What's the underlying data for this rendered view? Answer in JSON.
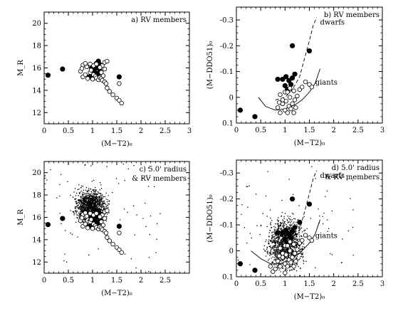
{
  "chart_data": [
    {
      "id": "a",
      "type": "scatter",
      "title": "a) RV members",
      "xlabel": "(M−T2)₀",
      "ylabel": "M_R",
      "xlim": [
        0,
        3
      ],
      "ylim": [
        21,
        11
      ],
      "xticks": [
        0,
        0.5,
        1,
        1.5,
        2,
        2.5,
        3
      ],
      "yticks": [
        12,
        14,
        16,
        18,
        20
      ],
      "show_xtick_labels": true,
      "show_ytick_labels": true,
      "series": [
        {
          "marker": "filled",
          "points": [
            [
              0.08,
              15.35
            ],
            [
              0.38,
              15.9
            ],
            [
              1.55,
              15.2
            ],
            [
              0.93,
              15.2
            ],
            [
              1.0,
              15.25
            ],
            [
              1.05,
              15.15
            ],
            [
              1.1,
              15.3
            ],
            [
              0.98,
              15.5
            ],
            [
              1.05,
              15.6
            ],
            [
              1.12,
              15.5
            ],
            [
              1.15,
              15.75
            ],
            [
              1.05,
              15.95
            ],
            [
              1.1,
              16.05
            ],
            [
              1.15,
              16.3
            ],
            [
              1.08,
              16.4
            ],
            [
              1.12,
              16.6
            ],
            [
              0.98,
              16.0
            ]
          ]
        },
        {
          "marker": "open",
          "points": [
            [
              0.75,
              15.7
            ],
            [
              0.8,
              15.2
            ],
            [
              0.85,
              15.4
            ],
            [
              0.9,
              15.05
            ],
            [
              0.95,
              15.6
            ],
            [
              0.97,
              15.8
            ],
            [
              1.0,
              15.0
            ],
            [
              1.02,
              15.4
            ],
            [
              1.06,
              15.25
            ],
            [
              1.08,
              15.1
            ],
            [
              1.12,
              14.95
            ],
            [
              1.15,
              15.15
            ],
            [
              1.18,
              15.05
            ],
            [
              1.2,
              14.9
            ],
            [
              1.22,
              15.3
            ],
            [
              1.25,
              14.75
            ],
            [
              1.28,
              14.6
            ],
            [
              1.3,
              14.2
            ],
            [
              1.35,
              13.9
            ],
            [
              1.42,
              13.6
            ],
            [
              1.5,
              13.3
            ],
            [
              1.55,
              13.1
            ],
            [
              1.6,
              12.85
            ],
            [
              1.55,
              14.6
            ],
            [
              0.8,
              16.25
            ],
            [
              0.88,
              16.1
            ],
            [
              0.95,
              16.35
            ],
            [
              1.02,
              16.2
            ],
            [
              1.08,
              16.35
            ],
            [
              1.2,
              16.2
            ],
            [
              1.25,
              16.5
            ],
            [
              1.15,
              16.05
            ],
            [
              0.85,
              16.4
            ],
            [
              1.25,
              15.9
            ],
            [
              1.3,
              16.6
            ],
            [
              0.78,
              15.95
            ],
            [
              1.18,
              15.6
            ]
          ]
        }
      ]
    },
    {
      "id": "b",
      "type": "scatter",
      "title": "b) RV members",
      "xlabel": "(M−T2)₀",
      "ylabel": "(M−DDO51)₀",
      "xlim": [
        0,
        3
      ],
      "ylim": [
        -0.35,
        0.1
      ],
      "xticks": [
        0,
        0.5,
        1,
        1.5,
        2,
        2.5,
        3
      ],
      "yticks": [
        0.1,
        0,
        -0.1,
        -0.2,
        -0.3
      ],
      "ytick_labels": [
        "0.1",
        "0",
        "-0.1",
        "-0.2",
        "-0.3"
      ],
      "show_xtick_labels": true,
      "show_ytick_labels": true,
      "annotations": [
        {
          "text": "giants",
          "x": 1.62,
          "y": -0.058
        },
        {
          "text": "dwarfs",
          "x": 1.72,
          "y": -0.29
        }
      ],
      "curves": [
        {
          "name": "giants",
          "style": "solid",
          "points": [
            [
              0.45,
              0.0
            ],
            [
              0.6,
              0.035
            ],
            [
              0.8,
              0.05
            ],
            [
              1.0,
              0.045
            ],
            [
              1.2,
              0.03
            ],
            [
              1.35,
              0.01
            ],
            [
              1.5,
              -0.02
            ],
            [
              1.62,
              -0.055
            ],
            [
              1.72,
              -0.11
            ]
          ]
        },
        {
          "name": "dwarfs",
          "style": "dashed",
          "points": [
            [
              0.8,
              0.01
            ],
            [
              1.0,
              0.0
            ],
            [
              1.15,
              -0.03
            ],
            [
              1.3,
              -0.08
            ],
            [
              1.4,
              -0.15
            ],
            [
              1.5,
              -0.22
            ],
            [
              1.58,
              -0.28
            ],
            [
              1.65,
              -0.31
            ]
          ]
        }
      ],
      "series": [
        {
          "marker": "filled",
          "points": [
            [
              0.08,
              0.05
            ],
            [
              0.38,
              0.075
            ],
            [
              0.95,
              -0.07
            ],
            [
              1.0,
              -0.045
            ],
            [
              1.05,
              -0.03
            ],
            [
              1.08,
              -0.065
            ],
            [
              1.12,
              -0.05
            ],
            [
              1.15,
              -0.075
            ],
            [
              0.85,
              -0.07
            ],
            [
              1.2,
              -0.09
            ],
            [
              1.5,
              -0.18
            ],
            [
              1.15,
              -0.2
            ],
            [
              1.02,
              -0.08
            ]
          ]
        },
        {
          "marker": "open",
          "points": [
            [
              0.85,
              0.04
            ],
            [
              0.9,
              0.06
            ],
            [
              0.95,
              0.025
            ],
            [
              1.0,
              0.05
            ],
            [
              1.02,
              0.015
            ],
            [
              1.05,
              0.06
            ],
            [
              1.08,
              0.035
            ],
            [
              1.1,
              0.0
            ],
            [
              1.12,
              0.045
            ],
            [
              1.15,
              0.025
            ],
            [
              1.18,
              0.06
            ],
            [
              1.2,
              0.01
            ],
            [
              1.22,
              0.04
            ],
            [
              0.9,
              -0.01
            ],
            [
              0.95,
              0.01
            ],
            [
              1.0,
              -0.02
            ],
            [
              1.25,
              -0.005
            ],
            [
              1.3,
              -0.03
            ],
            [
              1.35,
              -0.04
            ],
            [
              1.42,
              -0.06
            ],
            [
              1.5,
              -0.05
            ],
            [
              1.55,
              -0.04
            ],
            [
              1.05,
              -0.02
            ],
            [
              1.1,
              -0.035
            ],
            [
              1.18,
              -0.025
            ],
            [
              0.88,
              0.02
            ]
          ]
        }
      ]
    },
    {
      "id": "c",
      "type": "scatter",
      "title": "c) 5.0' radius",
      "title2": "& RV members",
      "xlabel": "(M−T2)₀",
      "ylabel": "M_R",
      "xlim": [
        0,
        3
      ],
      "ylim": [
        21,
        11
      ],
      "xticks": [
        0,
        0.5,
        1,
        1.5,
        2,
        2.5,
        3
      ],
      "xtick_labels": [
        "0",
        "0.5",
        "1",
        "1.5",
        "2",
        "2.5",
        ""
      ],
      "yticks": [
        12,
        14,
        16,
        18,
        20
      ],
      "show_xtick_labels": true,
      "show_ytick_labels": true,
      "field": {
        "n": 1300,
        "x_range": [
          0.55,
          1.35
        ],
        "y_range": [
          15.0,
          19.0
        ]
      },
      "series": [
        {
          "marker": "filled",
          "points": [
            [
              0.08,
              15.35
            ],
            [
              0.38,
              15.9
            ],
            [
              1.55,
              15.2
            ],
            [
              0.93,
              15.2
            ],
            [
              1.0,
              15.25
            ],
            [
              1.05,
              15.15
            ],
            [
              1.1,
              15.3
            ],
            [
              0.98,
              15.5
            ],
            [
              1.05,
              15.6
            ],
            [
              1.12,
              15.5
            ],
            [
              1.15,
              15.75
            ],
            [
              1.05,
              15.95
            ],
            [
              1.1,
              16.05
            ],
            [
              1.15,
              16.3
            ],
            [
              1.08,
              16.4
            ],
            [
              1.12,
              16.6
            ],
            [
              0.98,
              16.0
            ]
          ]
        },
        {
          "marker": "open",
          "points": [
            [
              0.75,
              15.7
            ],
            [
              0.8,
              15.2
            ],
            [
              0.85,
              15.4
            ],
            [
              0.9,
              15.05
            ],
            [
              0.95,
              15.6
            ],
            [
              0.97,
              15.8
            ],
            [
              1.0,
              15.0
            ],
            [
              1.02,
              15.4
            ],
            [
              1.06,
              15.25
            ],
            [
              1.08,
              15.1
            ],
            [
              1.12,
              14.95
            ],
            [
              1.15,
              15.15
            ],
            [
              1.18,
              15.05
            ],
            [
              1.2,
              14.9
            ],
            [
              1.22,
              15.3
            ],
            [
              1.25,
              14.75
            ],
            [
              1.28,
              14.6
            ],
            [
              1.3,
              14.2
            ],
            [
              1.35,
              13.9
            ],
            [
              1.42,
              13.6
            ],
            [
              1.5,
              13.3
            ],
            [
              1.55,
              13.1
            ],
            [
              1.6,
              12.85
            ],
            [
              1.55,
              14.6
            ],
            [
              0.8,
              16.25
            ],
            [
              0.88,
              16.1
            ],
            [
              0.95,
              16.35
            ],
            [
              1.02,
              16.2
            ],
            [
              1.08,
              16.35
            ],
            [
              1.2,
              16.2
            ],
            [
              1.25,
              16.5
            ],
            [
              1.15,
              16.05
            ],
            [
              0.85,
              16.4
            ],
            [
              1.25,
              15.9
            ],
            [
              1.3,
              16.6
            ],
            [
              0.78,
              15.95
            ],
            [
              1.18,
              15.6
            ]
          ]
        }
      ]
    },
    {
      "id": "d",
      "type": "scatter",
      "title": "d) 5.0' radius",
      "title2": "& RV members",
      "xlabel": "(M−T2)₀",
      "ylabel": "(M−DDO51)₀",
      "xlim": [
        0,
        3
      ],
      "ylim": [
        -0.35,
        0.1
      ],
      "xticks": [
        0,
        0.5,
        1,
        1.5,
        2,
        2.5,
        3
      ],
      "yticks": [
        0.1,
        0,
        -0.1,
        -0.2,
        -0.3
      ],
      "ytick_labels": [
        "0.1",
        "0",
        "-0.1",
        "-0.2",
        "-0.3"
      ],
      "show_xtick_labels": true,
      "show_ytick_labels": true,
      "annotations": [
        {
          "text": "giants",
          "x": 1.62,
          "y": -0.058
        },
        {
          "text": "dwarfs",
          "x": 1.72,
          "y": -0.29
        }
      ],
      "curves": [
        {
          "name": "giants",
          "style": "solid",
          "points": [
            [
              0.3,
              0.0
            ],
            [
              0.5,
              0.03
            ],
            [
              0.7,
              0.05
            ],
            [
              0.9,
              0.05
            ],
            [
              1.1,
              0.035
            ],
            [
              1.3,
              0.01
            ],
            [
              1.5,
              -0.03
            ],
            [
              1.62,
              -0.065
            ],
            [
              1.72,
              -0.12
            ]
          ]
        },
        {
          "name": "dwarfs",
          "style": "dashed",
          "points": [
            [
              0.8,
              0.01
            ],
            [
              1.0,
              0.0
            ],
            [
              1.15,
              -0.03
            ],
            [
              1.3,
              -0.08
            ],
            [
              1.4,
              -0.15
            ],
            [
              1.5,
              -0.22
            ],
            [
              1.58,
              -0.28
            ],
            [
              1.65,
              -0.31
            ]
          ]
        }
      ],
      "field": {
        "n": 1300,
        "x_range": [
          0.55,
          1.45
        ],
        "y_range": [
          -0.16,
          0.1
        ]
      },
      "series": [
        {
          "marker": "filled",
          "points": [
            [
              0.08,
              0.05
            ],
            [
              0.38,
              0.075
            ],
            [
              0.95,
              -0.07
            ],
            [
              1.0,
              -0.045
            ],
            [
              1.05,
              -0.03
            ],
            [
              1.08,
              -0.065
            ],
            [
              1.12,
              -0.05
            ],
            [
              1.15,
              -0.075
            ],
            [
              0.85,
              -0.07
            ],
            [
              1.2,
              -0.09
            ],
            [
              1.5,
              -0.18
            ],
            [
              1.15,
              -0.2
            ],
            [
              1.02,
              -0.08
            ],
            [
              1.3,
              -0.11
            ]
          ]
        },
        {
          "marker": "open",
          "points": [
            [
              0.85,
              0.04
            ],
            [
              0.9,
              0.06
            ],
            [
              0.95,
              0.025
            ],
            [
              1.0,
              0.05
            ],
            [
              1.02,
              0.015
            ],
            [
              1.05,
              0.06
            ],
            [
              1.08,
              0.035
            ],
            [
              1.1,
              0.0
            ],
            [
              1.12,
              0.045
            ],
            [
              1.15,
              0.025
            ],
            [
              1.18,
              0.06
            ],
            [
              1.2,
              0.01
            ],
            [
              1.22,
              0.04
            ],
            [
              0.9,
              -0.01
            ],
            [
              0.95,
              0.01
            ],
            [
              1.0,
              -0.02
            ],
            [
              1.25,
              -0.005
            ],
            [
              1.3,
              -0.03
            ],
            [
              1.35,
              -0.04
            ],
            [
              1.42,
              -0.06
            ],
            [
              1.5,
              -0.05
            ],
            [
              1.55,
              -0.04
            ],
            [
              1.05,
              -0.02
            ],
            [
              1.1,
              -0.035
            ],
            [
              1.18,
              -0.025
            ],
            [
              0.88,
              0.02
            ],
            [
              0.75,
              0.08
            ],
            [
              0.8,
              0.07
            ],
            [
              0.7,
              0.06
            ],
            [
              1.0,
              0.085
            ]
          ]
        }
      ]
    }
  ]
}
